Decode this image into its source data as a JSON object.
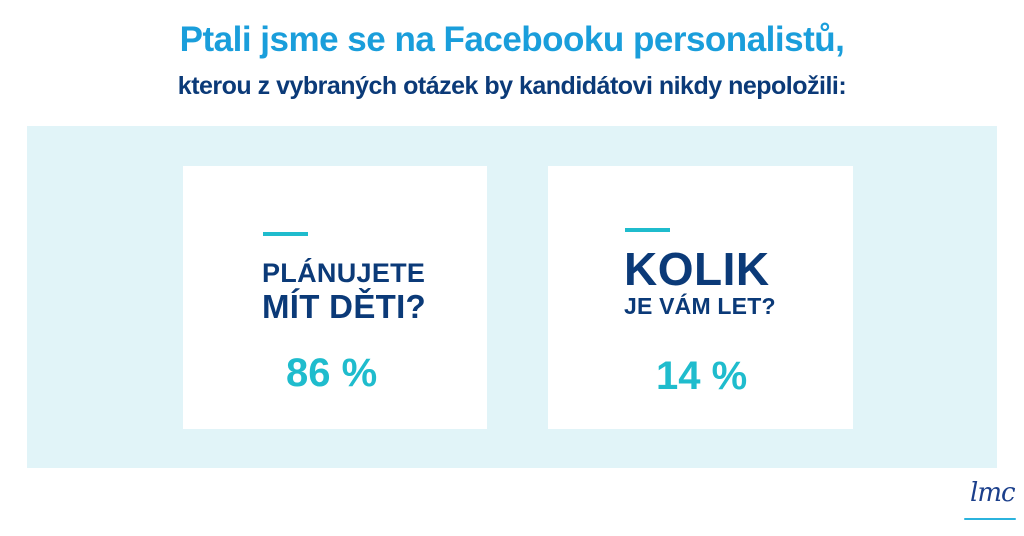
{
  "header": {
    "title": "Ptali jsme se na Facebooku personalistů,",
    "subtitle": "kterou z vybraných otázek by kandidátovi nikdy nepoložili:"
  },
  "cards": [
    {
      "question_line1": "PLÁNUJETE",
      "question_line2": "MÍT DĚTI?",
      "percent": "86 %"
    },
    {
      "question_line1": "KOLIK",
      "question_line2": "JE VÁM LET?",
      "percent": "14 %"
    }
  ],
  "logo": {
    "text": "lmc"
  },
  "colors": {
    "title": "#1a9edb",
    "subtitle": "#0b3a78",
    "question": "#0b3a78",
    "percent": "#1fbccd",
    "accent_line": "#1fbccd",
    "panel_bg": "#e1f4f8",
    "card_bg": "#ffffff",
    "logo_text": "#1b3f8b",
    "logo_line": "#2bb3dd"
  }
}
